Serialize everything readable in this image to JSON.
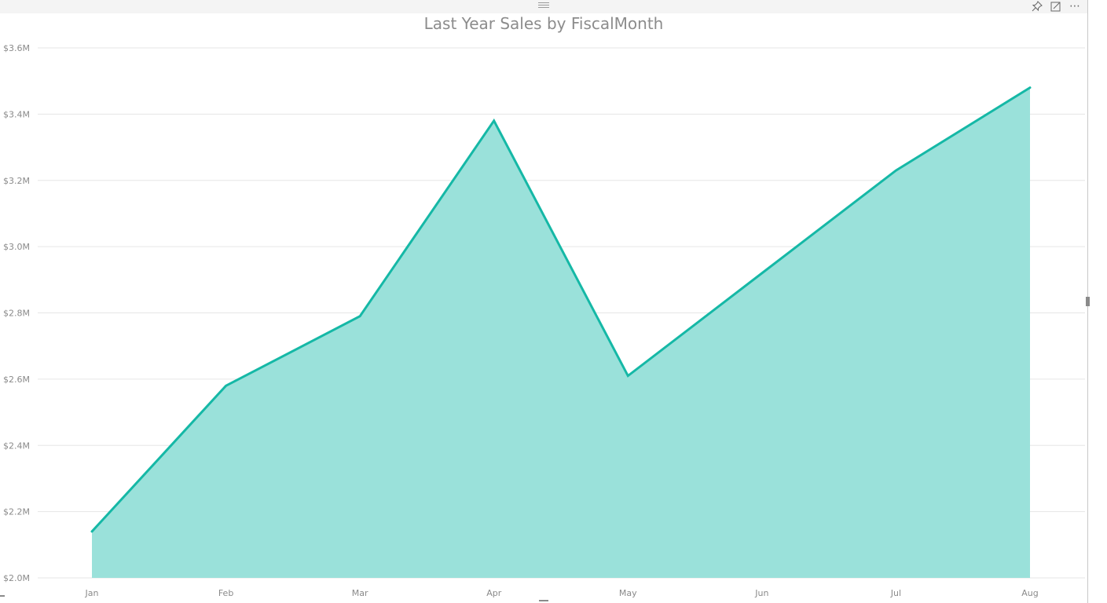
{
  "visual": {
    "title": "Last Year Sales by FiscalMonth",
    "header_icons": [
      "pin-icon",
      "focus-mode-icon",
      "more-options-icon"
    ],
    "more_options_glyph": "⋯"
  },
  "colors": {
    "line": "#15b8a6",
    "area": "#9ae1da",
    "grid": "#e6e6e6",
    "tick_text": "#8a8a8a",
    "title": "#8c8c8c"
  },
  "chart_data": {
    "type": "area",
    "title": "Last Year Sales by FiscalMonth",
    "xlabel": "",
    "ylabel": "",
    "categories": [
      "Jan",
      "Feb",
      "Mar",
      "Apr",
      "May",
      "Jun",
      "Jul",
      "Aug"
    ],
    "series": [
      {
        "values": [
          2.14,
          2.58,
          2.79,
          3.38,
          2.61,
          2.92,
          3.23,
          3.48
        ]
      }
    ],
    "y_unit": "M",
    "ylim": [
      2.0,
      3.6
    ],
    "yticks": [
      2.0,
      2.2,
      2.4,
      2.6,
      2.8,
      3.0,
      3.2,
      3.4,
      3.6
    ],
    "ytick_labels": [
      "$2.0M",
      "$2.2M",
      "$2.4M",
      "$2.6M",
      "$2.8M",
      "$3.0M",
      "$3.2M",
      "$3.4M",
      "$3.6M"
    ],
    "grid": true,
    "legend": "none"
  }
}
